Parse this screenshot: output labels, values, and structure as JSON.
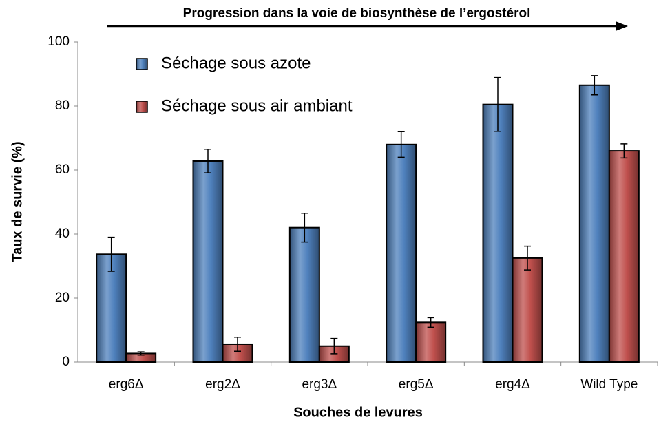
{
  "chart_data": {
    "type": "bar",
    "annotation": "Progression dans la voie de biosynthèse de l’ergostérol",
    "xlabel": "Souches de levures",
    "ylabel": "Taux de survie (%)",
    "categories": [
      "erg6Δ",
      "erg2Δ",
      "erg3Δ",
      "erg5Δ",
      "erg4Δ",
      "Wild Type"
    ],
    "series": [
      {
        "name": "Séchage sous azote",
        "color": "#4f81bd",
        "values": [
          33.7,
          62.8,
          42,
          68,
          80.5,
          86.5
        ],
        "errors": [
          5.3,
          3.7,
          4.5,
          4,
          8.4,
          3
        ]
      },
      {
        "name": "Séchage sous air ambiant",
        "color": "#c0504d",
        "values": [
          2.7,
          5.6,
          5,
          12.4,
          32.5,
          66
        ],
        "errors": [
          0.5,
          2.2,
          2.4,
          1.5,
          3.7,
          2.2
        ]
      }
    ],
    "ylim": [
      0,
      100
    ],
    "yticks": [
      0,
      20,
      40,
      60,
      80,
      100
    ],
    "grid": false,
    "legend": "upper left"
  }
}
